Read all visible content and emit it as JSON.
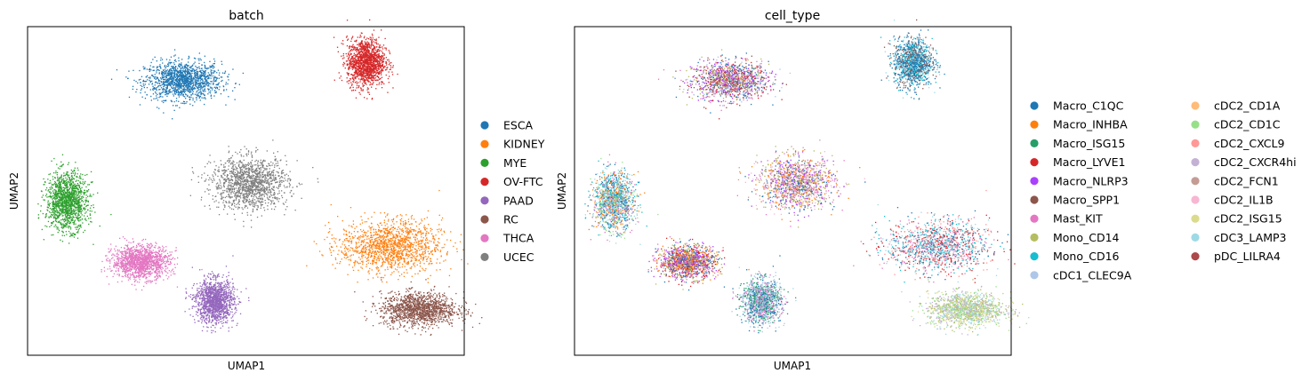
{
  "chart_data": [
    {
      "type": "scatter",
      "title": "batch",
      "xlabel": "UMAP1",
      "ylabel": "UMAP2",
      "legend_position": "right",
      "categories": [
        "ESCA",
        "KIDNEY",
        "MYE",
        "OV-FTC",
        "PAAD",
        "RC",
        "THCA",
        "UCEC"
      ],
      "colors": [
        "#1f77b4",
        "#ff7f0e",
        "#2ca02c",
        "#d62728",
        "#9467bd",
        "#8c564b",
        "#e377c2",
        "#7f7f7f"
      ],
      "clusters": [
        {
          "category": "ESCA",
          "center": [
            4.2,
            10.2
          ],
          "spread": [
            1.2,
            0.8
          ]
        },
        {
          "category": "OV-FTC",
          "center": [
            9.4,
            10.9
          ],
          "spread": [
            0.6,
            1.0
          ]
        },
        {
          "category": "MYE",
          "center": [
            0.9,
            5.6
          ],
          "spread": [
            0.65,
            1.2
          ]
        },
        {
          "category": "UCEC",
          "center": [
            6.1,
            6.3
          ],
          "spread": [
            1.2,
            1.1
          ]
        },
        {
          "category": "KIDNEY",
          "center": [
            10.1,
            3.9
          ],
          "spread": [
            1.6,
            1.1
          ]
        },
        {
          "category": "RC",
          "center": [
            10.9,
            1.5
          ],
          "spread": [
            1.2,
            0.7
          ]
        },
        {
          "category": "THCA",
          "center": [
            3.0,
            3.3
          ],
          "spread": [
            0.9,
            0.7
          ]
        },
        {
          "category": "PAAD",
          "center": [
            5.1,
            1.8
          ],
          "spread": [
            0.6,
            0.9
          ]
        }
      ]
    },
    {
      "type": "scatter",
      "title": "cell_type",
      "xlabel": "UMAP1",
      "ylabel": "UMAP2",
      "legend_position": "right",
      "legend_columns": 2,
      "categories": [
        "Macro_C1QC",
        "Macro_INHBA",
        "Macro_ISG15",
        "Macro_LYVE1",
        "Macro_NLRP3",
        "Macro_SPP1",
        "Mast_KIT",
        "Mono_CD14",
        "Mono_CD16",
        "cDC1_CLEC9A",
        "cDC2_CD1A",
        "cDC2_CD1C",
        "cDC2_CXCL9",
        "cDC2_CXCR4hi",
        "cDC2_FCN1",
        "cDC2_IL1B",
        "cDC2_ISG15",
        "cDC3_LAMP3",
        "pDC_LILRA4"
      ],
      "colors": [
        "#1f77b4",
        "#ff7f0e",
        "#279e68",
        "#d62728",
        "#aa40fc",
        "#8c564b",
        "#e377c2",
        "#b5bd61",
        "#17becf",
        "#aec7e8",
        "#ffbb78",
        "#98df8a",
        "#ff9896",
        "#c5b0d5",
        "#c49c94",
        "#f7b6d2",
        "#dbdb8d",
        "#9edae5",
        "#ad494a"
      ]
    }
  ]
}
